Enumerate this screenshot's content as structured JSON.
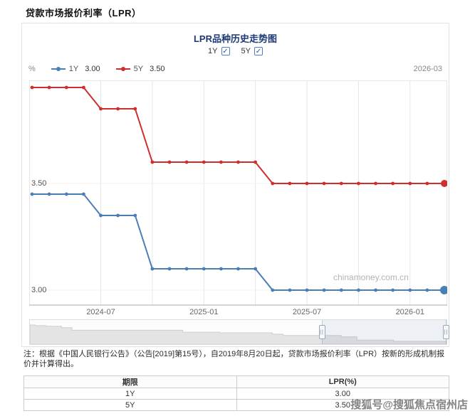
{
  "page": {
    "title": "贷款市场报价利率（LPR）",
    "sohu_watermark": "搜狐号@搜狐焦点宿州店"
  },
  "chart": {
    "title": "LPR品种历史走势图",
    "toggles": [
      {
        "label": "1Y",
        "checked": true
      },
      {
        "label": "5Y",
        "checked": true
      }
    ],
    "checkbox_glyph": "✓",
    "y_unit": "%",
    "legend": [
      {
        "name": "1Y",
        "value": "3.00"
      },
      {
        "name": "5Y",
        "value": "3.50"
      }
    ],
    "x_end_label": "2026-03",
    "watermark": "chinamoney.com.cn",
    "y_tick_labels": [
      "3.50",
      "3.00"
    ]
  },
  "chart_data": {
    "type": "line",
    "title": "LPR品种历史走势图",
    "x_start_month": "2024-03",
    "x_end_month": "2026-03",
    "months_count": 25,
    "x_tick_labels": [
      {
        "label": "2024-07",
        "month_index": 4
      },
      {
        "label": "2025-01",
        "month_index": 10
      },
      {
        "label": "2025-07",
        "month_index": 16
      },
      {
        "label": "2026-01",
        "month_index": 22
      }
    ],
    "grid_month_indices": [
      4,
      7,
      10,
      13,
      16,
      19,
      22
    ],
    "ylabel": "%",
    "ylim": [
      2.93,
      3.98
    ],
    "y_grid_values": [
      3.5,
      3.0
    ],
    "grid": true,
    "legend_position": "top-left",
    "series": [
      {
        "name": "1Y",
        "color": "#4a7fb5",
        "current_value": 3.0,
        "values": [
          3.45,
          3.45,
          3.45,
          3.45,
          3.35,
          3.35,
          3.35,
          3.1,
          3.1,
          3.1,
          3.1,
          3.1,
          3.1,
          3.1,
          3.0,
          3.0,
          3.0,
          3.0,
          3.0,
          3.0,
          3.0,
          3.0,
          3.0,
          3.0,
          3.0
        ]
      },
      {
        "name": "5Y",
        "color": "#cf2e2e",
        "current_value": 3.5,
        "values": [
          3.95,
          3.95,
          3.95,
          3.95,
          3.85,
          3.85,
          3.85,
          3.6,
          3.6,
          3.6,
          3.6,
          3.6,
          3.6,
          3.6,
          3.5,
          3.5,
          3.5,
          3.5,
          3.5,
          3.5,
          3.5,
          3.5,
          3.5,
          3.5,
          3.5
        ]
      }
    ],
    "datazoom": {
      "window_percent": [
        70,
        100
      ],
      "handle_glyph": "||",
      "shadow_profile": [
        [
          0,
          0
        ],
        [
          0.013,
          0.04
        ],
        [
          0.038,
          0.08
        ],
        [
          0.076,
          0.16
        ],
        [
          0.101,
          0.32
        ],
        [
          0.367,
          0.44
        ],
        [
          0.456,
          0.48
        ],
        [
          0.582,
          0.56
        ],
        [
          0.608,
          0.64
        ],
        [
          0.747,
          0.72
        ],
        [
          0.785,
          0.92
        ],
        [
          0.873,
          1.0
        ],
        [
          1.0,
          1.0
        ]
      ]
    }
  },
  "note": {
    "text": "注：根据《中国人民银行公告》（公告[2019]第15号），自2019年8月20日起，贷款市场报价利率（LPR）按新的形成机制报价并计算得出。"
  },
  "table": {
    "headers": [
      "期限",
      "LPR(%)"
    ],
    "rows": [
      [
        "1Y",
        "3.00"
      ],
      [
        "5Y",
        "3.50"
      ]
    ]
  }
}
